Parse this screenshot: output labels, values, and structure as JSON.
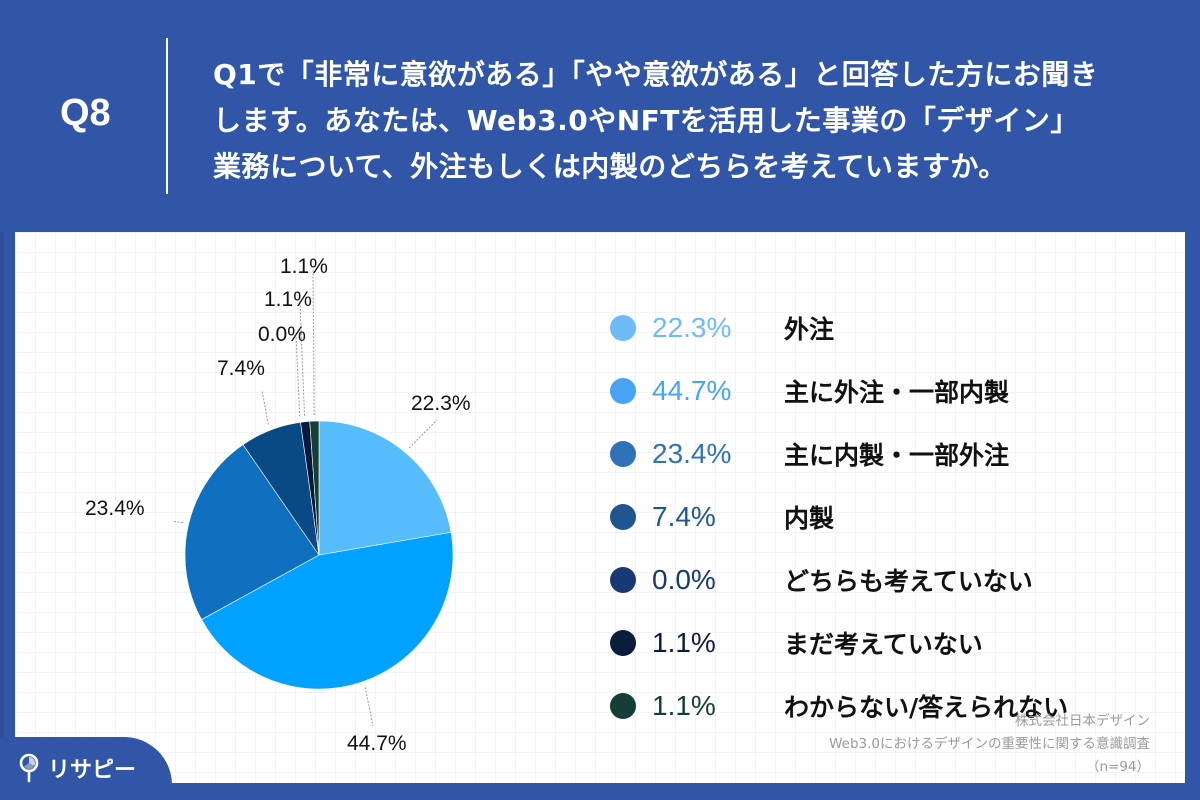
{
  "header": {
    "question_number": "Q8",
    "question_lines": [
      "Q1で「非常に意欲がある」「やや意欲がある」と回答した方にお聞き",
      "します。あなたは、Web3.0やNFTを活用した事業の「デザイン」",
      "業務について、外注もしくは内製のどちらを考えていますか。"
    ]
  },
  "pie_labels": [
    "22.3%",
    "44.7%",
    "23.4%",
    "7.4%",
    "0.0%",
    "1.1%",
    "1.1%"
  ],
  "legend": [
    {
      "pct": "22.3%",
      "label": "外注",
      "dot_color": "#6dbcf7",
      "text_color": "#6dbcf7"
    },
    {
      "pct": "44.7%",
      "label": "主に外注・一部内製",
      "dot_color": "#46a4f2",
      "text_color": "#46a4f2"
    },
    {
      "pct": "23.4%",
      "label": "主に内製・一部外注",
      "dot_color": "#2f72b8",
      "text_color": "#2f72b8"
    },
    {
      "pct": "7.4%",
      "label": "内製",
      "dot_color": "#1f5690",
      "text_color": "#1f5690"
    },
    {
      "pct": "0.0%",
      "label": "どちらも考えていない",
      "dot_color": "#173a72",
      "text_color": "#173a72"
    },
    {
      "pct": "1.1%",
      "label": "まだ考えていない",
      "dot_color": "#0b1d3d",
      "text_color": "#0b1d3d"
    },
    {
      "pct": "1.1%",
      "label": "わからない/答えられない",
      "dot_color": "#143f38",
      "text_color": "#143f38"
    }
  ],
  "source": {
    "company": "株式会社日本デザイン",
    "survey": "Web3.0におけるデザインの重要性に関する意識調査",
    "n": "（n=94）"
  },
  "logo": {
    "text": "リサピー"
  },
  "colors": {
    "background": "#3156a8",
    "panel": "#ffffff"
  },
  "chart_data": {
    "type": "pie",
    "title": "Q8 Web3.0やNFTを活用した事業の「デザイン」業務について、外注もしくは内製のどちらを考えていますか。",
    "categories": [
      "外注",
      "主に外注・一部内製",
      "主に内製・一部外注",
      "内製",
      "どちらも考えていない",
      "まだ考えていない",
      "わからない/答えられない"
    ],
    "values": [
      22.3,
      44.7,
      23.4,
      7.4,
      0.0,
      1.1,
      1.1
    ],
    "slice_colors": [
      "#56bcfc",
      "#00a2ff",
      "#0e70be",
      "#0a4a84",
      "#10336b",
      "#061a3e",
      "#153f36"
    ],
    "unit": "%",
    "start_angle": "12 o'clock, clockwise",
    "legend_position": "right",
    "n": 94
  }
}
